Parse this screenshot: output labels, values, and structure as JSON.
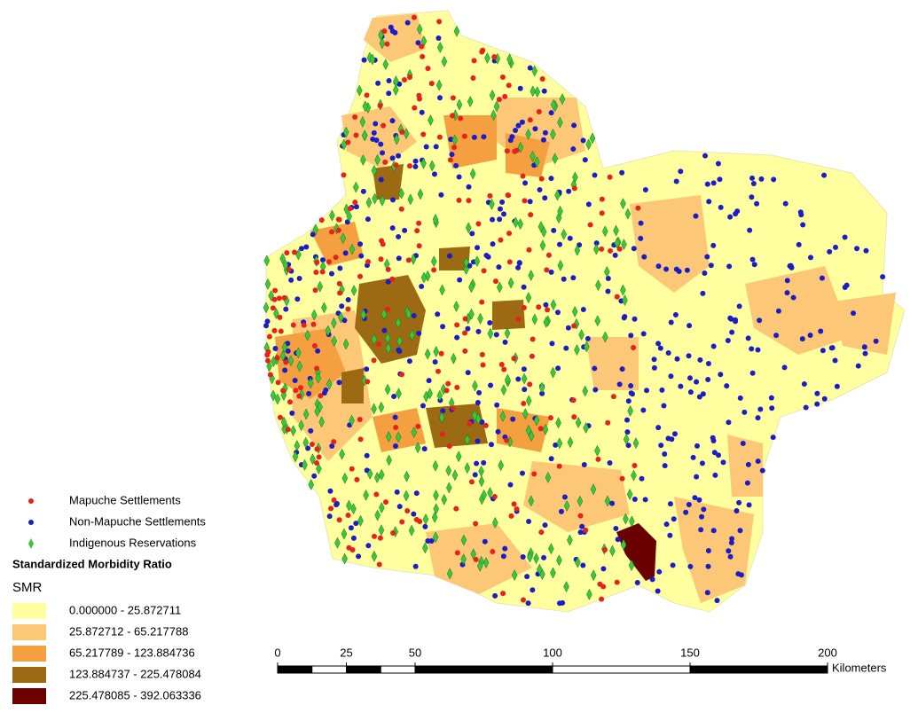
{
  "legend": {
    "symbols": [
      {
        "label": "Mapuche Settlements",
        "color": "#e8211d"
      },
      {
        "label": "Non-Mapuche Settlements",
        "color": "#1c1cc8"
      },
      {
        "label": "Indigenous Reservations",
        "color": "#38c838"
      }
    ],
    "title": "Standardized Morbidity Ratio",
    "subtitle": "SMR",
    "classes": [
      {
        "label": "0.000000 - 25.872711",
        "color": "#ffffa0"
      },
      {
        "label": "25.872712 - 65.217788",
        "color": "#fcc878"
      },
      {
        "label": "65.217789 - 123.884736",
        "color": "#f5a040"
      },
      {
        "label": "123.884737 - 225.478084",
        "color": "#9c6a12"
      },
      {
        "label": "225.478085 - 392.063336",
        "color": "#6b0000"
      }
    ]
  },
  "scale_bar": {
    "ticks": [
      0,
      25,
      50,
      100,
      150,
      200
    ],
    "unit": "Kilometers"
  }
}
